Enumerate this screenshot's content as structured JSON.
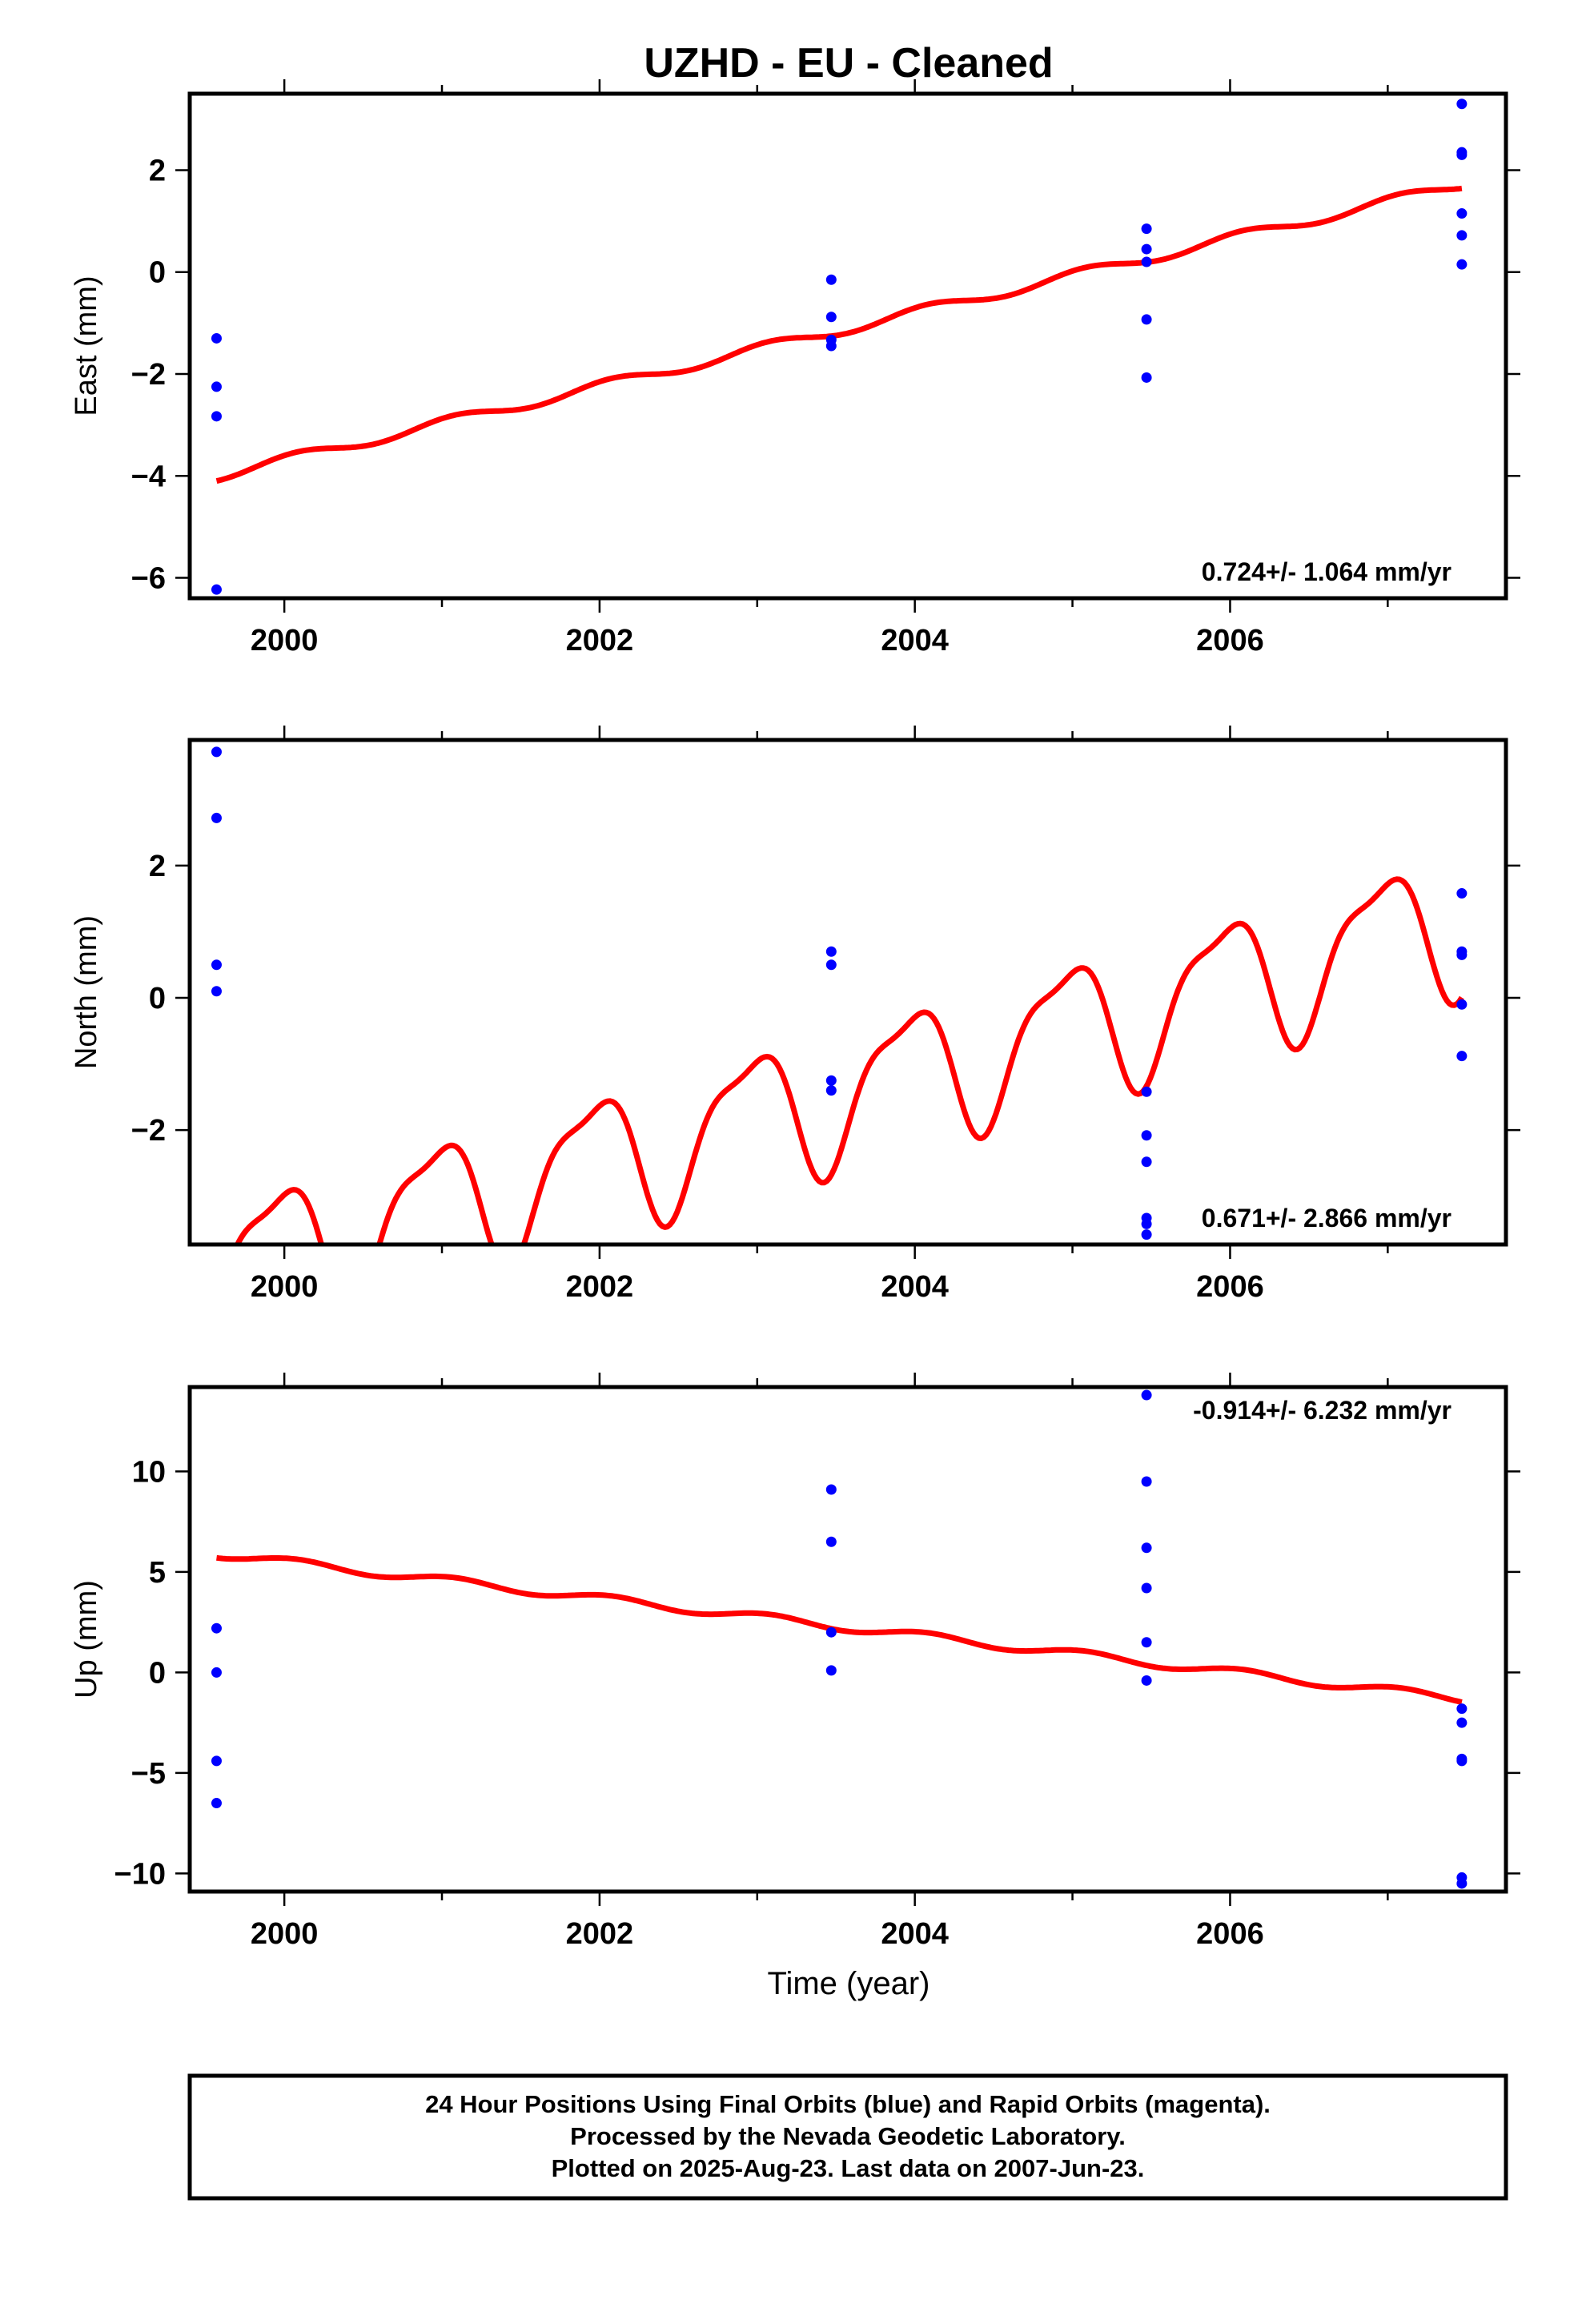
{
  "figure_title": "UZHD  - EU - Cleaned",
  "x_axis_label": "Time (year)",
  "footer_lines": [
    "24 Hour Positions Using Final Orbits (blue) and Rapid Orbits (magenta).",
    "Processed by the Nevada Geodetic Laboratory.",
    "Plotted on 2025-Aug-23. Last data on 2007-Jun-23."
  ],
  "colors": {
    "points": "#0000ff",
    "model": "#ff0000",
    "axis": "#000000",
    "background": "#ffffff"
  },
  "chart_data": [
    {
      "type": "scatter",
      "component": "east",
      "ylabel": "East (mm)",
      "xlabel": "",
      "xlim": [
        1999.4,
        2007.75
      ],
      "ylim": [
        -6.4,
        3.5
      ],
      "xticks": [
        2000,
        2002,
        2004,
        2006
      ],
      "xtick_labels": [
        "2000",
        "2002",
        "2004",
        "2006"
      ],
      "yticks": [
        -6,
        -4,
        -2,
        0,
        2
      ],
      "ytick_labels": [
        "−6",
        "−4",
        "−2",
        "0",
        "2"
      ],
      "rate_label": "0.724+/- 1.064 mm/yr",
      "rate_position": "bottom-right",
      "points": [
        {
          "x": 1999.57,
          "y": -1.3
        },
        {
          "x": 1999.57,
          "y": -2.25
        },
        {
          "x": 1999.57,
          "y": -2.83
        },
        {
          "x": 1999.57,
          "y": -6.23
        },
        {
          "x": 2003.47,
          "y": -0.15
        },
        {
          "x": 2003.47,
          "y": -0.88
        },
        {
          "x": 2003.47,
          "y": -1.33
        },
        {
          "x": 2003.47,
          "y": -1.45
        },
        {
          "x": 2005.47,
          "y": 0.85
        },
        {
          "x": 2005.47,
          "y": 0.45
        },
        {
          "x": 2005.47,
          "y": 0.2
        },
        {
          "x": 2005.47,
          "y": -0.93
        },
        {
          "x": 2005.47,
          "y": -2.07
        },
        {
          "x": 2007.47,
          "y": 3.3
        },
        {
          "x": 2007.47,
          "y": 2.35
        },
        {
          "x": 2007.47,
          "y": 2.3
        },
        {
          "x": 2007.47,
          "y": 1.15
        },
        {
          "x": 2007.47,
          "y": 0.72
        },
        {
          "x": 2007.47,
          "y": 0.15
        }
      ],
      "model": {
        "x_start": 1999.57,
        "x_end": 2007.47,
        "y_start": -4.0,
        "slope": 0.724,
        "amp1": 0.1,
        "phase1": -1.6,
        "amp2": 0.0,
        "phase2": 0.0
      }
    },
    {
      "type": "scatter",
      "component": "north",
      "ylabel": "North (mm)",
      "xlabel": "",
      "xlim": [
        1999.4,
        2007.75
      ],
      "ylim": [
        -3.73,
        3.9
      ],
      "xticks": [
        2000,
        2002,
        2004,
        2006
      ],
      "xtick_labels": [
        "2000",
        "2002",
        "2004",
        "2006"
      ],
      "yticks": [
        -2,
        0,
        2
      ],
      "ytick_labels": [
        "−2",
        "0",
        "2"
      ],
      "rate_label": "0.671+/- 2.866 mm/yr",
      "rate_position": "bottom-right",
      "points": [
        {
          "x": 1999.57,
          "y": 3.72
        },
        {
          "x": 1999.57,
          "y": 2.72
        },
        {
          "x": 1999.57,
          "y": 0.5
        },
        {
          "x": 1999.57,
          "y": 0.1
        },
        {
          "x": 2003.47,
          "y": 0.7
        },
        {
          "x": 2003.47,
          "y": 0.5
        },
        {
          "x": 2003.47,
          "y": -1.25
        },
        {
          "x": 2003.47,
          "y": -1.4
        },
        {
          "x": 2005.47,
          "y": -1.42
        },
        {
          "x": 2005.47,
          "y": -2.08
        },
        {
          "x": 2005.47,
          "y": -2.48
        },
        {
          "x": 2005.47,
          "y": -3.33
        },
        {
          "x": 2005.47,
          "y": -3.42
        },
        {
          "x": 2005.47,
          "y": -3.58
        },
        {
          "x": 2007.47,
          "y": 1.58
        },
        {
          "x": 2007.47,
          "y": 0.7
        },
        {
          "x": 2007.47,
          "y": 0.65
        },
        {
          "x": 2007.47,
          "y": -0.1
        },
        {
          "x": 2007.47,
          "y": -0.88
        }
      ],
      "model": {
        "x_start": 1999.57,
        "x_end": 2007.47,
        "y_start": -4.1,
        "slope": 0.671,
        "amp1": 1.0,
        "phase1": -0.8,
        "amp2": 0.3,
        "phase2": 0.5
      }
    },
    {
      "type": "scatter",
      "component": "up",
      "ylabel": "Up (mm)",
      "xlabel": "Time (year)",
      "xlim": [
        1999.4,
        2007.75
      ],
      "ylim": [
        -10.9,
        14.2
      ],
      "xticks": [
        2000,
        2002,
        2004,
        2006
      ],
      "xtick_labels": [
        "2000",
        "2002",
        "2004",
        "2006"
      ],
      "yticks": [
        -10,
        -5,
        0,
        5,
        10
      ],
      "ytick_labels": [
        "−10",
        "−5",
        "0",
        "5",
        "10"
      ],
      "rate_label": "-0.914+/- 6.232 mm/yr",
      "rate_position": "top-right",
      "points": [
        {
          "x": 1999.57,
          "y": 2.2
        },
        {
          "x": 1999.57,
          "y": 0.0
        },
        {
          "x": 1999.57,
          "y": -4.4
        },
        {
          "x": 1999.57,
          "y": -6.5
        },
        {
          "x": 2003.47,
          "y": 9.1
        },
        {
          "x": 2003.47,
          "y": 6.5
        },
        {
          "x": 2003.47,
          "y": 2.0
        },
        {
          "x": 2003.47,
          "y": 0.1
        },
        {
          "x": 2005.47,
          "y": 13.8
        },
        {
          "x": 2005.47,
          "y": 9.5
        },
        {
          "x": 2005.47,
          "y": 6.2
        },
        {
          "x": 2005.47,
          "y": 4.2
        },
        {
          "x": 2005.47,
          "y": 1.5
        },
        {
          "x": 2005.47,
          "y": -0.4
        },
        {
          "x": 2007.47,
          "y": -1.8
        },
        {
          "x": 2007.47,
          "y": -2.5
        },
        {
          "x": 2007.47,
          "y": -4.3
        },
        {
          "x": 2007.47,
          "y": -4.4
        },
        {
          "x": 2007.47,
          "y": -10.2
        },
        {
          "x": 2007.47,
          "y": -10.5
        }
      ],
      "model": {
        "x_start": 1999.57,
        "x_end": 2007.47,
        "y_start": 5.9,
        "slope": -0.914,
        "amp1": 0.2,
        "phase1": -1.6,
        "amp2": 0.0,
        "phase2": 0.0
      }
    }
  ]
}
